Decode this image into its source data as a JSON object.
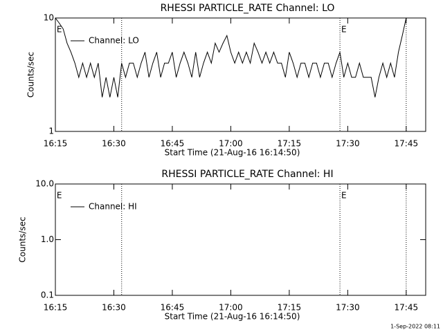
{
  "chart_data": [
    {
      "type": "line",
      "title": "RHESSI PARTICLE_RATE Channel: LO",
      "y_label": "Counts/sec",
      "x_label": "Start Time (21-Aug-16 16:14:50)",
      "log_y": true,
      "xlim": [
        "16:15",
        "17:50"
      ],
      "xticks": [
        "16:15",
        "16:30",
        "16:45",
        "17:00",
        "17:15",
        "17:30",
        "17:45"
      ],
      "ylim": [
        1,
        10
      ],
      "yticks": [
        1,
        10
      ],
      "event_lines": [
        "16:32",
        "17:28",
        "17:45"
      ],
      "annotations": [
        {
          "text": "E",
          "x": "16:16"
        },
        {
          "text": "E",
          "x": "17:29"
        }
      ],
      "x": [
        "16:15",
        "16:16",
        "16:17",
        "16:18",
        "16:19",
        "16:20",
        "16:21",
        "16:22",
        "16:23",
        "16:24",
        "16:25",
        "16:26",
        "16:27",
        "16:28",
        "16:29",
        "16:30",
        "16:31",
        "16:32",
        "16:33",
        "16:34",
        "16:35",
        "16:36",
        "16:37",
        "16:38",
        "16:39",
        "16:40",
        "16:41",
        "16:42",
        "16:43",
        "16:44",
        "16:45",
        "16:46",
        "16:47",
        "16:48",
        "16:49",
        "16:50",
        "16:51",
        "16:52",
        "16:53",
        "16:54",
        "16:55",
        "16:56",
        "16:57",
        "16:58",
        "16:59",
        "17:00",
        "17:01",
        "17:02",
        "17:03",
        "17:04",
        "17:05",
        "17:06",
        "17:07",
        "17:08",
        "17:09",
        "17:10",
        "17:11",
        "17:12",
        "17:13",
        "17:14",
        "17:15",
        "17:16",
        "17:17",
        "17:18",
        "17:19",
        "17:20",
        "17:21",
        "17:22",
        "17:23",
        "17:24",
        "17:25",
        "17:26",
        "17:27",
        "17:28",
        "17:29",
        "17:30",
        "17:31",
        "17:32",
        "17:33",
        "17:34",
        "17:35",
        "17:36",
        "17:37",
        "17:38",
        "17:39",
        "17:40",
        "17:41",
        "17:42",
        "17:43",
        "17:44",
        "17:45"
      ],
      "series": [
        {
          "name": "Channel: LO",
          "color": "#000000",
          "values": [
            10,
            9,
            8,
            6,
            5,
            4,
            3,
            4,
            3,
            4,
            3,
            4,
            2,
            3,
            2,
            3,
            2,
            4,
            3,
            4,
            4,
            3,
            4,
            5,
            3,
            4,
            5,
            3,
            4,
            4,
            5,
            3,
            4,
            5,
            4,
            3,
            5,
            3,
            4,
            5,
            4,
            6,
            5,
            6,
            7,
            5,
            4,
            5,
            4,
            5,
            4,
            6,
            5,
            4,
            5,
            4,
            5,
            4,
            4,
            3,
            5,
            4,
            3,
            4,
            4,
            3,
            4,
            4,
            3,
            4,
            4,
            3,
            4,
            5,
            3,
            4,
            3,
            3,
            4,
            3,
            3,
            3,
            2,
            3,
            4,
            3,
            4,
            3,
            5,
            7,
            10
          ]
        }
      ]
    },
    {
      "type": "line",
      "title": "RHESSI PARTICLE_RATE Channel: HI",
      "y_label": "Counts/sec",
      "x_label": "Start Time (21-Aug-16 16:14:50)",
      "log_y": true,
      "xlim": [
        "16:15",
        "17:50"
      ],
      "xticks": [
        "16:15",
        "16:30",
        "16:45",
        "17:00",
        "17:15",
        "17:30",
        "17:45"
      ],
      "ylim": [
        0.1,
        10
      ],
      "yticks": [
        0.1,
        {
          "value": 1,
          "label": "1.0"
        },
        {
          "value": 10,
          "label": "10.0"
        }
      ],
      "event_lines": [
        "16:32",
        "17:28",
        "17:45"
      ],
      "annotations": [
        {
          "text": "E",
          "x": "16:16"
        },
        {
          "text": "E",
          "x": "17:29"
        }
      ],
      "x": [],
      "series": [
        {
          "name": "Channel: HI",
          "color": "#000000",
          "values": []
        }
      ]
    }
  ],
  "footer": "1-Sep-2022 08:11"
}
